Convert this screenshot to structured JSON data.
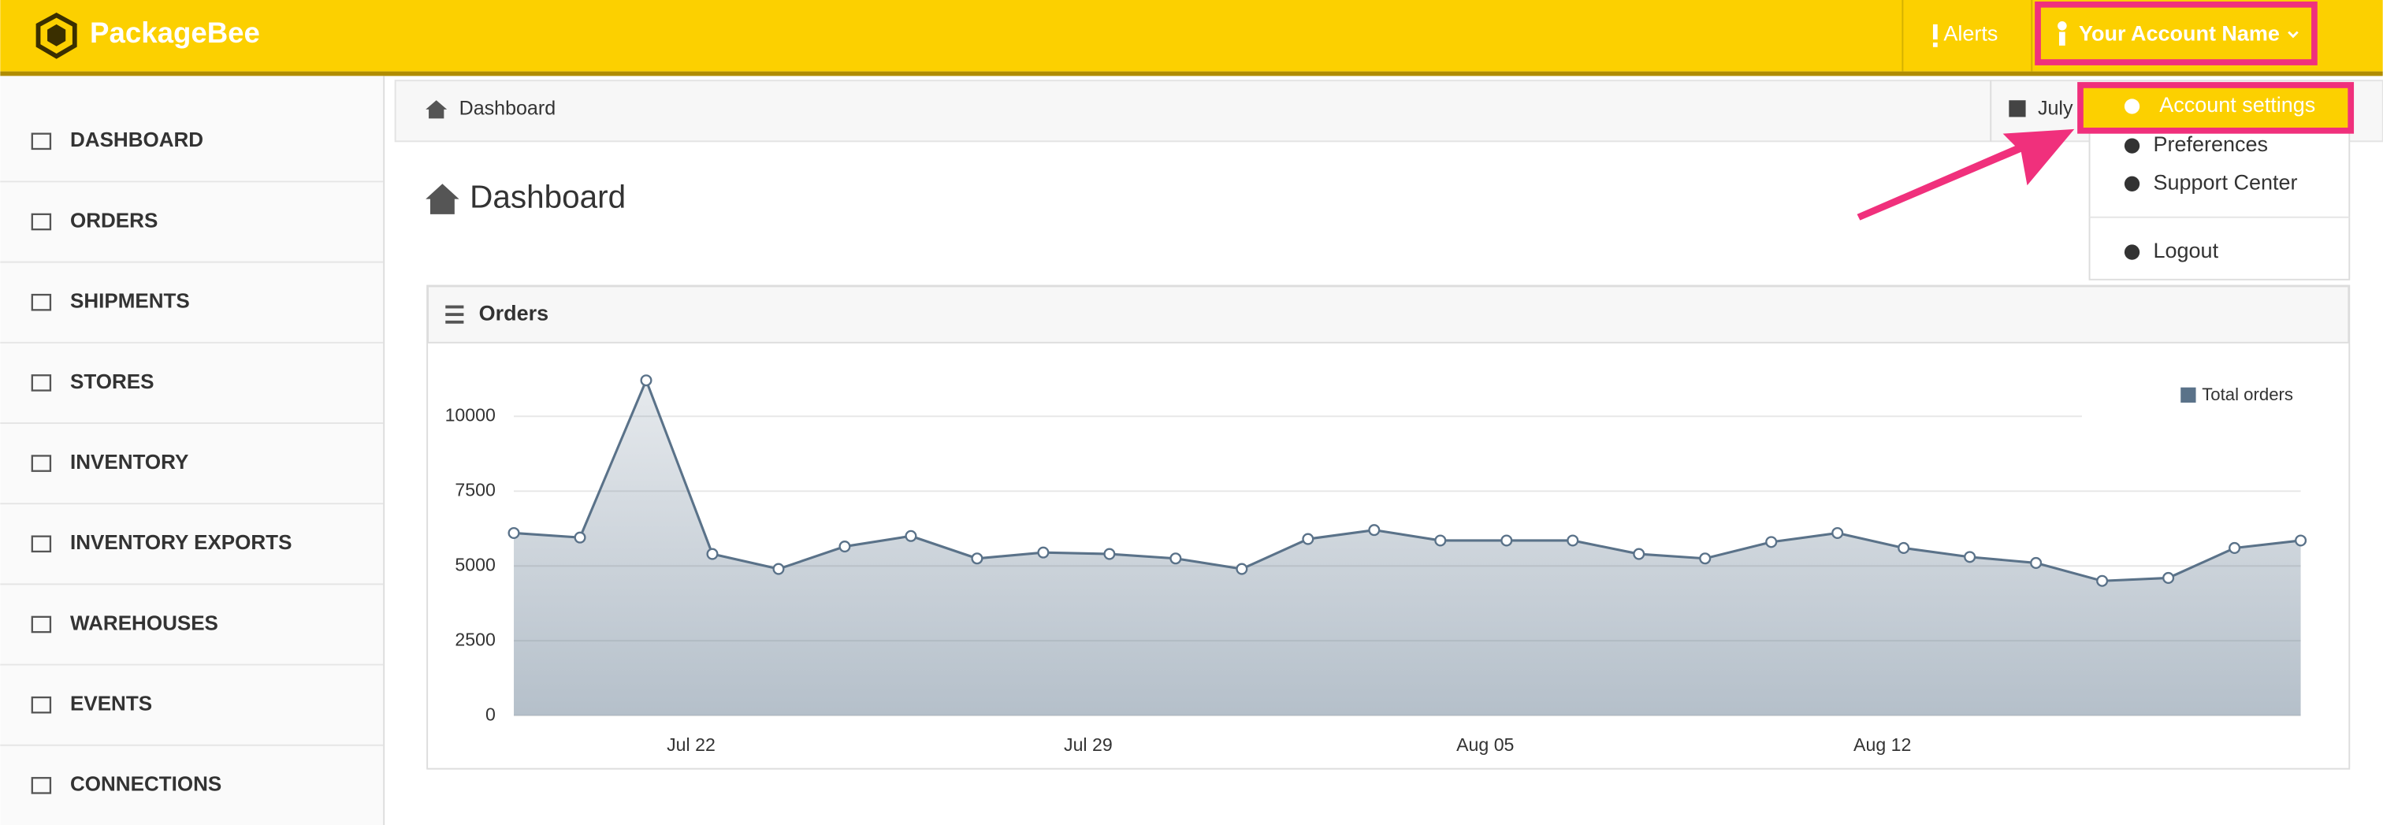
{
  "header": {
    "logo": "PackageBee",
    "alerts": "Alerts",
    "account": "Your Account Name"
  },
  "sidebar": [
    "DASHBOARD",
    "ORDERS",
    "SHIPMENTS",
    "STORES",
    "INVENTORY",
    "INVENTORY EXPORTS",
    "WAREHOUSES",
    "EVENTS",
    "CONNECTIONS"
  ],
  "breadcrumb": "Dashboard",
  "date_button": "July",
  "heading": "Dashboard",
  "panel_title": "Orders",
  "dropdown": [
    "Account settings",
    "Preferences",
    "Support Center",
    "Logout"
  ],
  "chart_data": {
    "type": "area",
    "categories": [
      null,
      null,
      null,
      "Jul 22",
      null,
      null,
      null,
      null,
      null,
      "Jul 29",
      null,
      null,
      null,
      null,
      null,
      "Aug 05",
      null,
      null,
      null,
      null,
      null,
      "Aug 12",
      null,
      null,
      null,
      null,
      null,
      null
    ],
    "series": [
      {
        "name": "Total orders",
        "color": "#5a7289",
        "values": [
          6100,
          5950,
          11200,
          5400,
          4900,
          5650,
          6000,
          5250,
          5450,
          5400,
          5250,
          4900,
          5900,
          6200,
          5850,
          5850,
          5850,
          5400,
          5250,
          5800,
          6100,
          5600,
          5300,
          5100,
          4500,
          4600,
          5600,
          5850
        ]
      }
    ],
    "ylim": [
      0,
      10000
    ],
    "yticks": [
      0,
      2500,
      5000,
      7500,
      10000
    ],
    "grid": true
  }
}
